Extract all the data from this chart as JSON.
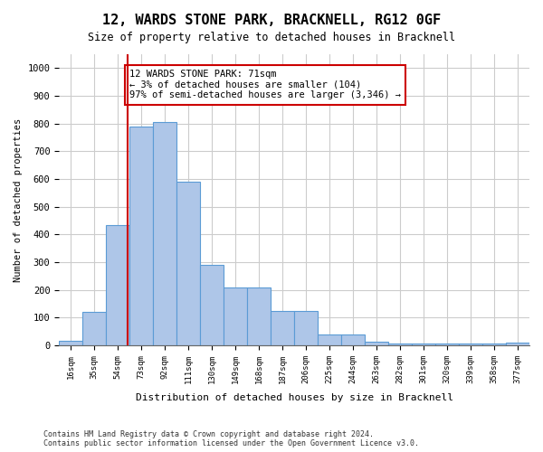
{
  "title": "12, WARDS STONE PARK, BRACKNELL, RG12 0GF",
  "subtitle": "Size of property relative to detached houses in Bracknell",
  "xlabel": "Distribution of detached houses by size in Bracknell",
  "ylabel": "Number of detached properties",
  "footnote1": "Contains HM Land Registry data © Crown copyright and database right 2024.",
  "footnote2": "Contains public sector information licensed under the Open Government Licence v3.0.",
  "bin_edges": [
    16,
    35,
    54,
    73,
    92,
    111,
    130,
    149,
    168,
    187,
    206,
    225,
    244,
    263,
    282,
    301,
    320,
    339,
    358,
    377,
    396
  ],
  "bar_heights": [
    15,
    120,
    435,
    790,
    805,
    590,
    290,
    210,
    210,
    125,
    125,
    38,
    38,
    12,
    5,
    5,
    5,
    5,
    5,
    8
  ],
  "bar_color": "#aec6e8",
  "bar_edge_color": "#5b9bd5",
  "property_size": 71,
  "vline_color": "#cc0000",
  "annotation_text": "12 WARDS STONE PARK: 71sqm\n← 3% of detached houses are smaller (104)\n97% of semi-detached houses are larger (3,346) →",
  "annotation_box_color": "#ffffff",
  "annotation_box_edge": "#cc0000",
  "ylim": [
    0,
    1050
  ],
  "background_color": "#ffffff",
  "grid_color": "#cccccc"
}
